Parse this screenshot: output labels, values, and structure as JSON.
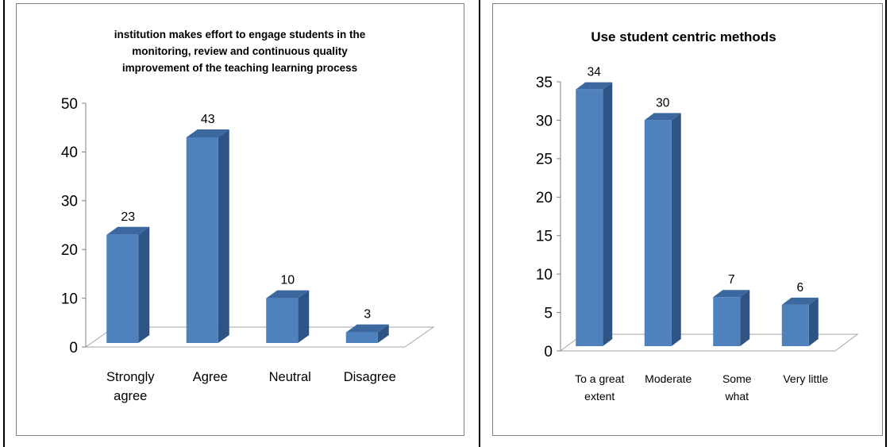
{
  "chart_data": [
    {
      "type": "bar",
      "title_lines": [
        "institution makes effort to engage students in the",
        "monitoring, review and continuous quality",
        "improvement of the teaching learning process"
      ],
      "categories": [
        [
          "Strongly",
          "agree"
        ],
        [
          "Agree"
        ],
        [
          "Neutral"
        ],
        [
          "Disagree"
        ]
      ],
      "values": [
        23,
        43,
        10,
        3
      ],
      "data_labels": [
        "23",
        "43",
        "10",
        "3"
      ],
      "yticks": [
        "0",
        "10",
        "20",
        "30",
        "40",
        "50"
      ],
      "ylim": [
        0,
        50
      ],
      "grid": false,
      "legend": "none",
      "colors": {
        "front": "#4F81BD",
        "top": "#3C68A0",
        "side": "#2E5486"
      }
    },
    {
      "type": "bar",
      "title_lines": [
        "Use student centric methods"
      ],
      "categories": [
        [
          "To a great",
          "extent"
        ],
        [
          "Moderate"
        ],
        [
          "Some",
          "what"
        ],
        [
          "Very little"
        ]
      ],
      "values": [
        34,
        30,
        7,
        6
      ],
      "data_labels": [
        "34",
        "30",
        "7",
        "6"
      ],
      "yticks": [
        "0",
        "5",
        "10",
        "15",
        "20",
        "25",
        "30",
        "35"
      ],
      "ylim": [
        0,
        35
      ],
      "grid": false,
      "legend": "none",
      "colors": {
        "front": "#4F81BD",
        "top": "#3C68A0",
        "side": "#2E5486"
      }
    }
  ]
}
